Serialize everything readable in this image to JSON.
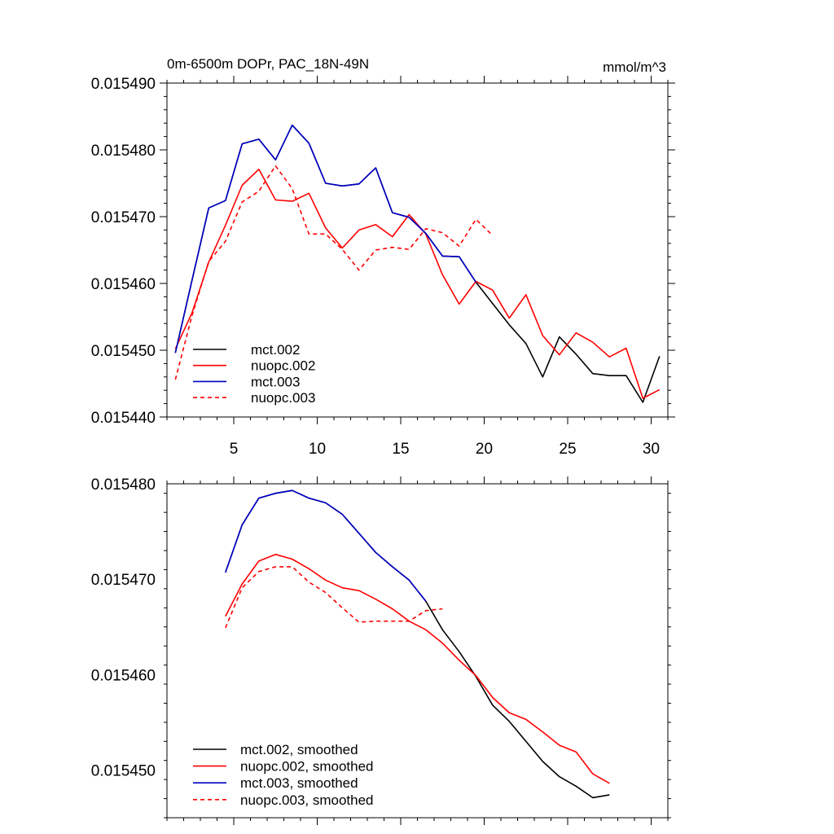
{
  "chart_data": [
    {
      "type": "line",
      "title": "0m-6500m DOPr, PAC_18N-49N",
      "units": "mmol/m^3",
      "xlim": [
        1,
        31
      ],
      "ylim": [
        0.01544,
        0.01549
      ],
      "xticks": [
        5,
        10,
        15,
        20,
        25,
        30
      ],
      "xtick_labels": [
        "5",
        "10",
        "15",
        "20",
        "25",
        "30"
      ],
      "yticks": [
        0.01544,
        0.01545,
        0.01546,
        0.01547,
        0.01548,
        0.01549
      ],
      "ytick_labels": [
        "0.015440",
        "0.015450",
        "0.015460",
        "0.015470",
        "0.015480",
        "0.015490"
      ],
      "legend_position": "bottom-left",
      "series": [
        {
          "name": "mct.002",
          "color": "#000000",
          "dash": "solid",
          "x": [
            1.5,
            2.5,
            3.5,
            4.5,
            5.5,
            6.5,
            7.5,
            8.5,
            9.5,
            10.5,
            11.5,
            12.5,
            13.5,
            14.5,
            15.5,
            16.5,
            17.5,
            18.5,
            19.5,
            20.5,
            21.5,
            22.5,
            23.5,
            24.5,
            25.5,
            26.5,
            27.5,
            28.5,
            29.5,
            30.5
          ],
          "y": [
            0.0154496,
            0.0154605,
            0.0154713,
            0.0154724,
            0.0154809,
            0.0154816,
            0.0154785,
            0.0154837,
            0.015481,
            0.015475,
            0.0154746,
            0.0154749,
            0.0154773,
            0.0154706,
            0.0154699,
            0.0154675,
            0.0154641,
            0.015464,
            0.0154602,
            0.015457,
            0.0154538,
            0.015451,
            0.015446,
            0.015452,
            0.0154494,
            0.0154465,
            0.0154462,
            0.0154462,
            0.0154422,
            0.0154491
          ]
        },
        {
          "name": "nuopc.002",
          "color": "#ff0000",
          "dash": "solid",
          "x": [
            1.5,
            2.5,
            3.5,
            4.5,
            5.5,
            6.5,
            7.5,
            8.5,
            9.5,
            10.5,
            11.5,
            12.5,
            13.5,
            14.5,
            15.5,
            16.5,
            17.5,
            18.5,
            19.5,
            20.5,
            21.5,
            22.5,
            23.5,
            24.5,
            25.5,
            26.5,
            27.5,
            28.5,
            29.5,
            30.5
          ],
          "y": [
            0.0154502,
            0.0154556,
            0.0154632,
            0.0154687,
            0.0154747,
            0.0154771,
            0.0154725,
            0.0154723,
            0.0154735,
            0.0154683,
            0.0154653,
            0.015468,
            0.0154688,
            0.015467,
            0.0154703,
            0.0154674,
            0.0154613,
            0.0154569,
            0.0154603,
            0.015459,
            0.0154548,
            0.0154583,
            0.0154522,
            0.0154493,
            0.0154526,
            0.0154512,
            0.015449,
            0.0154503,
            0.0154428,
            0.0154441
          ]
        },
        {
          "name": "mct.003",
          "color": "#0000c8",
          "dash": "solid",
          "x": [
            1.5,
            2.5,
            3.5,
            4.5,
            5.5,
            6.5,
            7.5,
            8.5,
            9.5,
            10.5,
            11.5,
            12.5,
            13.5,
            14.5,
            15.5,
            16.5,
            17.5,
            18.5,
            19.5
          ],
          "y": [
            0.0154496,
            0.0154605,
            0.0154713,
            0.0154724,
            0.0154809,
            0.0154816,
            0.0154785,
            0.0154837,
            0.015481,
            0.015475,
            0.0154746,
            0.0154749,
            0.0154773,
            0.0154706,
            0.0154699,
            0.0154675,
            0.0154641,
            0.015464,
            0.0154602
          ]
        },
        {
          "name": "nuopc.003",
          "color": "#ff0000",
          "dash": "dashed",
          "x": [
            1.5,
            2.5,
            3.5,
            4.5,
            5.5,
            6.5,
            7.5,
            8.5,
            9.5,
            10.5,
            11.5,
            12.5,
            13.5,
            14.5,
            15.5,
            16.5,
            17.5,
            18.5,
            19.5,
            20.5
          ],
          "y": [
            0.0154456,
            0.0154552,
            0.0154633,
            0.0154663,
            0.0154722,
            0.0154738,
            0.0154776,
            0.0154742,
            0.0154674,
            0.0154674,
            0.0154651,
            0.015462,
            0.015465,
            0.0154654,
            0.0154651,
            0.0154682,
            0.0154676,
            0.0154656,
            0.0154696,
            0.0154672
          ]
        }
      ]
    },
    {
      "type": "line",
      "title": "",
      "xlim": [
        1,
        31
      ],
      "ylim": [
        0.015445,
        0.01548
      ],
      "xticks": [
        5,
        10,
        15,
        20,
        25,
        30
      ],
      "yticks": [
        0.01545,
        0.01546,
        0.01547,
        0.01548
      ],
      "ytick_labels": [
        "0.015450",
        "0.015460",
        "0.015470",
        "0.015480"
      ],
      "legend_position": "bottom-left",
      "series": [
        {
          "name": "mct.002, smoothed",
          "color": "#000000",
          "dash": "solid",
          "x": [
            4.5,
            5.5,
            6.5,
            7.5,
            8.5,
            9.5,
            10.5,
            11.5,
            12.5,
            13.5,
            14.5,
            15.5,
            16.5,
            17.5,
            18.5,
            19.5,
            20.5,
            21.5,
            22.5,
            23.5,
            24.5,
            25.5,
            26.5,
            27.5
          ],
          "y": [
            0.0154707,
            0.0154757,
            0.0154785,
            0.015479,
            0.0154793,
            0.0154785,
            0.015478,
            0.0154768,
            0.0154748,
            0.0154728,
            0.0154713,
            0.0154699,
            0.0154677,
            0.0154647,
            0.0154624,
            0.0154598,
            0.0154568,
            0.0154551,
            0.015453,
            0.0154509,
            0.0154493,
            0.0154483,
            0.0154471,
            0.0154474
          ]
        },
        {
          "name": "nuopc.002, smoothed",
          "color": "#ff0000",
          "dash": "solid",
          "x": [
            4.5,
            5.5,
            6.5,
            7.5,
            8.5,
            9.5,
            10.5,
            11.5,
            12.5,
            13.5,
            14.5,
            15.5,
            16.5,
            17.5,
            18.5,
            19.5,
            20.5,
            21.5,
            22.5,
            23.5,
            24.5,
            25.5,
            26.5,
            27.5
          ],
          "y": [
            0.0154661,
            0.0154695,
            0.0154719,
            0.0154726,
            0.0154721,
            0.0154711,
            0.0154699,
            0.0154691,
            0.0154688,
            0.0154679,
            0.0154669,
            0.0154656,
            0.0154647,
            0.0154633,
            0.0154615,
            0.0154599,
            0.0154576,
            0.015456,
            0.0154553,
            0.015454,
            0.0154526,
            0.0154519,
            0.0154496,
            0.0154486
          ]
        },
        {
          "name": "mct.003, smoothed",
          "color": "#0000c8",
          "dash": "solid",
          "x": [
            4.5,
            5.5,
            6.5,
            7.5,
            8.5,
            9.5,
            10.5,
            11.5,
            12.5,
            13.5,
            14.5,
            15.5,
            16.5
          ],
          "y": [
            0.0154707,
            0.0154757,
            0.0154785,
            0.015479,
            0.0154793,
            0.0154785,
            0.015478,
            0.0154768,
            0.0154748,
            0.0154728,
            0.0154713,
            0.0154699,
            0.0154677
          ]
        },
        {
          "name": "nuopc.003, smoothed",
          "color": "#ff0000",
          "dash": "dashed",
          "x": [
            4.5,
            5.5,
            6.5,
            7.5,
            8.5,
            9.5,
            10.5,
            11.5,
            12.5,
            13.5,
            14.5,
            15.5,
            16.5,
            17.5
          ],
          "y": [
            0.0154649,
            0.0154691,
            0.0154708,
            0.0154713,
            0.0154713,
            0.0154697,
            0.0154686,
            0.015467,
            0.0154655,
            0.0154656,
            0.0154656,
            0.0154656,
            0.0154667,
            0.0154669
          ]
        }
      ]
    }
  ]
}
